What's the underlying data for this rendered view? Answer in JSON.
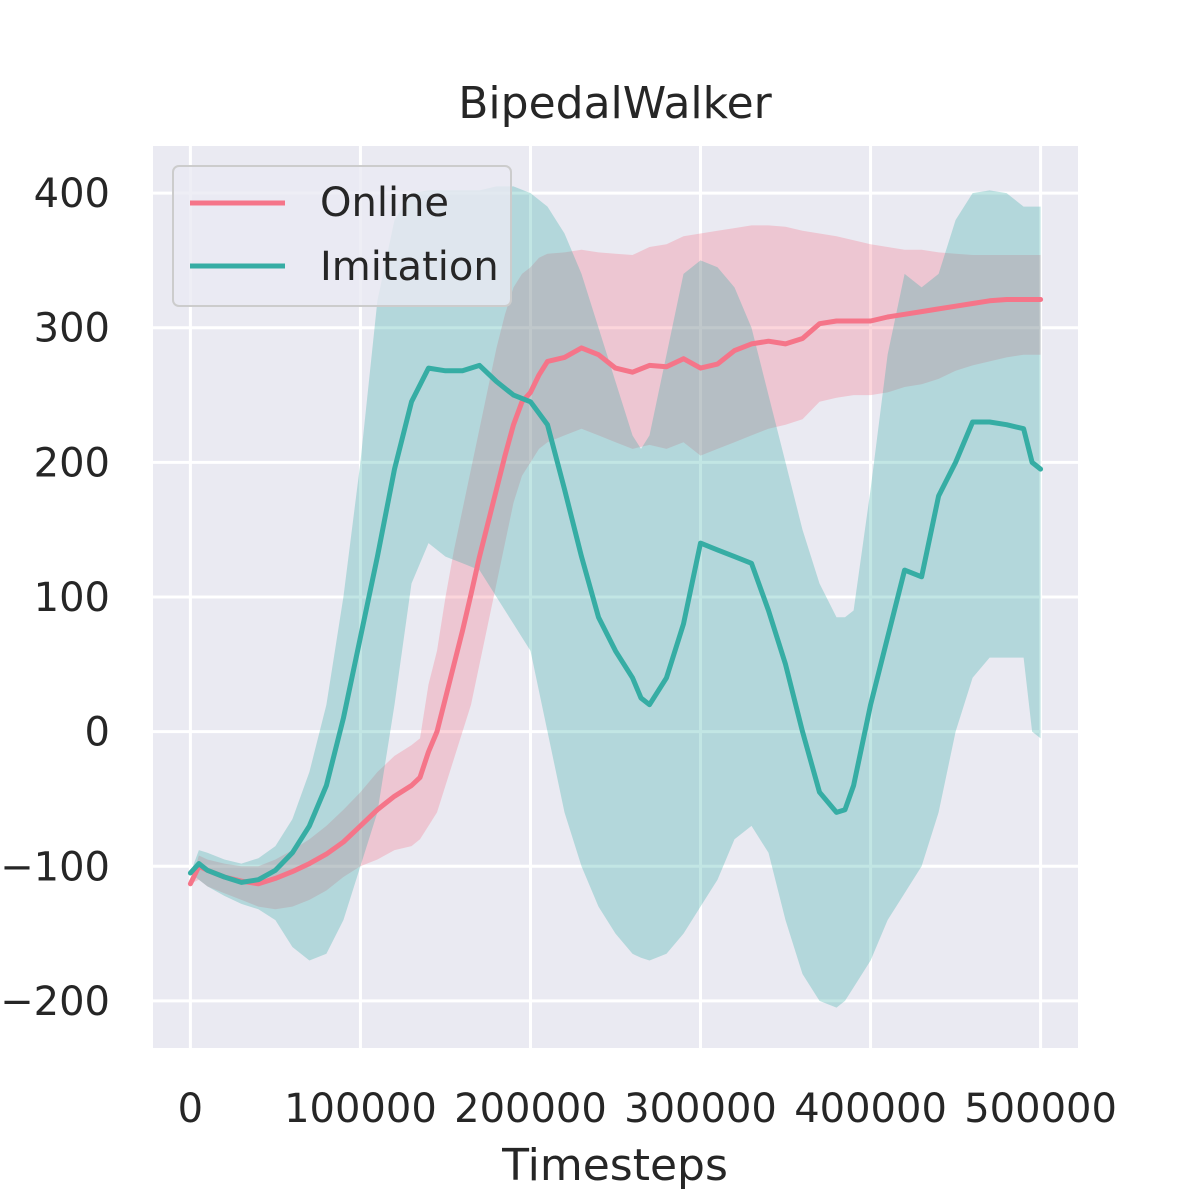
{
  "chart_data": {
    "type": "line",
    "title": "BipedalWalker",
    "xlabel": "Timesteps",
    "ylabel": "",
    "xlim": [
      -22000,
      522000
    ],
    "ylim": [
      -235,
      435
    ],
    "xticks": [
      0,
      100000,
      200000,
      300000,
      400000,
      500000
    ],
    "yticks": [
      -200,
      -100,
      0,
      100,
      200,
      300,
      400
    ],
    "xtick_labels": [
      "0",
      "100000",
      "200000",
      "300000",
      "400000",
      "500000"
    ],
    "ytick_labels": [
      "−200",
      "−100",
      "0",
      "100",
      "200",
      "300",
      "400"
    ],
    "grid": true,
    "legend": {
      "position": "top-left",
      "entries": [
        "Online",
        "Imitation"
      ]
    },
    "colors": {
      "Online": "#f57589",
      "Imitation": "#36ada4",
      "background": "#eaeaf2",
      "grid": "#ffffff"
    },
    "series": [
      {
        "name": "Online",
        "x": [
          0,
          5000,
          10000,
          20000,
          30000,
          40000,
          50000,
          60000,
          70000,
          80000,
          90000,
          100000,
          110000,
          120000,
          130000,
          135000,
          140000,
          145000,
          150000,
          155000,
          160000,
          165000,
          170000,
          175000,
          180000,
          185000,
          190000,
          195000,
          200000,
          205000,
          210000,
          220000,
          230000,
          240000,
          250000,
          260000,
          270000,
          280000,
          290000,
          300000,
          310000,
          320000,
          330000,
          340000,
          350000,
          360000,
          370000,
          380000,
          390000,
          400000,
          410000,
          420000,
          430000,
          440000,
          450000,
          460000,
          470000,
          480000,
          490000,
          500000
        ],
        "mean": [
          -113,
          -100,
          -103,
          -108,
          -111,
          -113,
          -109,
          -104,
          -98,
          -91,
          -82,
          -70,
          -58,
          -48,
          -40,
          -34,
          -15,
          0,
          25,
          50,
          75,
          102,
          130,
          155,
          180,
          205,
          228,
          245,
          252,
          265,
          275,
          278,
          285,
          280,
          270,
          267,
          272,
          271,
          277,
          270,
          273,
          283,
          288,
          290,
          288,
          292,
          303,
          305,
          305,
          305,
          308,
          310,
          312,
          314,
          316,
          318,
          320,
          321,
          321,
          321
        ],
        "lower": [
          -113,
          -110,
          -115,
          -120,
          -125,
          -130,
          -132,
          -130,
          -125,
          -118,
          -108,
          -100,
          -95,
          -88,
          -85,
          -80,
          -70,
          -60,
          -40,
          -20,
          0,
          20,
          50,
          80,
          110,
          140,
          170,
          190,
          200,
          210,
          215,
          220,
          225,
          220,
          215,
          210,
          213,
          210,
          215,
          205,
          210,
          215,
          220,
          225,
          228,
          232,
          245,
          248,
          250,
          250,
          252,
          256,
          258,
          262,
          268,
          272,
          275,
          278,
          280,
          280
        ],
        "upper": [
          -113,
          -92,
          -95,
          -98,
          -100,
          -100,
          -95,
          -88,
          -80,
          -70,
          -58,
          -45,
          -30,
          -18,
          -10,
          -5,
          35,
          60,
          100,
          135,
          165,
          195,
          225,
          255,
          285,
          310,
          330,
          340,
          345,
          352,
          355,
          356,
          358,
          356,
          355,
          354,
          360,
          362,
          368,
          370,
          372,
          374,
          376,
          376,
          375,
          372,
          370,
          368,
          365,
          362,
          360,
          358,
          358,
          356,
          355,
          354,
          354,
          354,
          354,
          354
        ]
      },
      {
        "name": "Imitation",
        "x": [
          0,
          5000,
          10000,
          20000,
          30000,
          40000,
          50000,
          60000,
          70000,
          80000,
          90000,
          100000,
          110000,
          120000,
          130000,
          140000,
          150000,
          160000,
          170000,
          180000,
          190000,
          200000,
          210000,
          220000,
          230000,
          240000,
          250000,
          260000,
          265000,
          270000,
          280000,
          290000,
          300000,
          310000,
          320000,
          330000,
          340000,
          350000,
          360000,
          370000,
          380000,
          385000,
          390000,
          400000,
          410000,
          420000,
          430000,
          440000,
          450000,
          460000,
          470000,
          480000,
          490000,
          495000,
          500000
        ],
        "mean": [
          -105,
          -98,
          -103,
          -108,
          -112,
          -110,
          -103,
          -90,
          -70,
          -40,
          10,
          70,
          130,
          195,
          245,
          270,
          268,
          268,
          272,
          260,
          250,
          245,
          228,
          180,
          130,
          85,
          60,
          40,
          25,
          20,
          40,
          80,
          140,
          135,
          130,
          125,
          90,
          50,
          0,
          -45,
          -60,
          -58,
          -40,
          20,
          70,
          120,
          115,
          175,
          200,
          230,
          230,
          228,
          225,
          200,
          195
        ],
        "lower": [
          -105,
          -110,
          -115,
          -122,
          -128,
          -132,
          -140,
          -160,
          -170,
          -165,
          -140,
          -100,
          -60,
          20,
          110,
          140,
          130,
          125,
          120,
          100,
          80,
          60,
          0,
          -60,
          -100,
          -130,
          -150,
          -165,
          -168,
          -170,
          -165,
          -150,
          -130,
          -110,
          -80,
          -70,
          -90,
          -140,
          -180,
          -200,
          -205,
          -200,
          -190,
          -170,
          -140,
          -120,
          -100,
          -60,
          0,
          40,
          55,
          55,
          55,
          0,
          -5
        ],
        "upper": [
          -105,
          -88,
          -90,
          -95,
          -98,
          -94,
          -85,
          -65,
          -30,
          20,
          100,
          200,
          320,
          380,
          400,
          402,
          402,
          402,
          402,
          405,
          405,
          400,
          390,
          370,
          340,
          300,
          260,
          220,
          210,
          220,
          280,
          340,
          350,
          345,
          330,
          300,
          250,
          200,
          150,
          110,
          85,
          85,
          90,
          180,
          280,
          340,
          330,
          340,
          380,
          400,
          402,
          400,
          390,
          390,
          390
        ]
      }
    ]
  }
}
